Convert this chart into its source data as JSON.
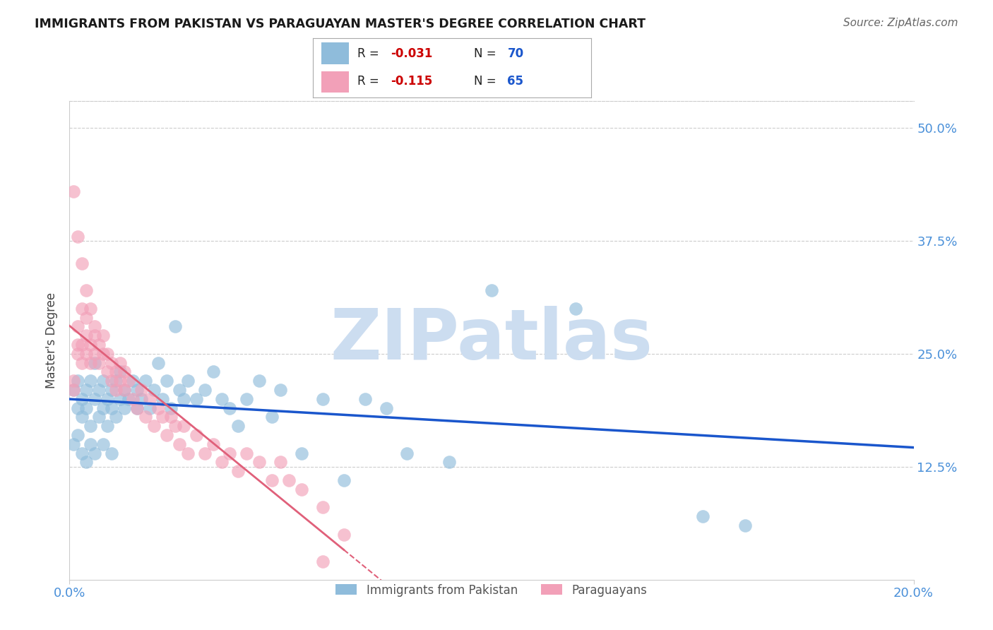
{
  "title": "IMMIGRANTS FROM PAKISTAN VS PARAGUAYAN MASTER'S DEGREE CORRELATION CHART",
  "source": "Source: ZipAtlas.com",
  "ylabel": "Master's Degree",
  "right_ytick_vals": [
    0.5,
    0.375,
    0.25,
    0.125
  ],
  "right_ytick_labels": [
    "50.0%",
    "37.5%",
    "25.0%",
    "12.5%"
  ],
  "xmin": 0.0,
  "xmax": 0.2,
  "ymin": 0.0,
  "ymax": 0.53,
  "blue_R": "-0.031",
  "blue_N": "70",
  "pink_R": "-0.115",
  "pink_N": "65",
  "blue_color": "#8fbcdb",
  "pink_color": "#f2a0b8",
  "blue_line_color": "#1a56cc",
  "pink_line_color": "#e0607a",
  "label_blue": "Immigrants from Pakistan",
  "label_pink": "Paraguayans",
  "blue_scatter_x": [
    0.001,
    0.002,
    0.002,
    0.003,
    0.003,
    0.004,
    0.004,
    0.005,
    0.005,
    0.006,
    0.006,
    0.007,
    0.007,
    0.008,
    0.008,
    0.009,
    0.009,
    0.01,
    0.01,
    0.011,
    0.011,
    0.012,
    0.012,
    0.013,
    0.013,
    0.014,
    0.015,
    0.016,
    0.016,
    0.017,
    0.018,
    0.019,
    0.02,
    0.021,
    0.022,
    0.023,
    0.024,
    0.025,
    0.026,
    0.027,
    0.028,
    0.03,
    0.032,
    0.034,
    0.036,
    0.038,
    0.04,
    0.042,
    0.045,
    0.048,
    0.05,
    0.055,
    0.06,
    0.065,
    0.07,
    0.075,
    0.08,
    0.09,
    0.1,
    0.12,
    0.001,
    0.002,
    0.003,
    0.004,
    0.005,
    0.006,
    0.008,
    0.01,
    0.15,
    0.16
  ],
  "blue_scatter_y": [
    0.21,
    0.19,
    0.22,
    0.2,
    0.18,
    0.21,
    0.19,
    0.22,
    0.17,
    0.2,
    0.24,
    0.18,
    0.21,
    0.19,
    0.22,
    0.2,
    0.17,
    0.21,
    0.19,
    0.22,
    0.18,
    0.2,
    0.23,
    0.19,
    0.21,
    0.2,
    0.22,
    0.21,
    0.19,
    0.2,
    0.22,
    0.19,
    0.21,
    0.24,
    0.2,
    0.22,
    0.19,
    0.28,
    0.21,
    0.2,
    0.22,
    0.2,
    0.21,
    0.23,
    0.2,
    0.19,
    0.17,
    0.2,
    0.22,
    0.18,
    0.21,
    0.14,
    0.2,
    0.11,
    0.2,
    0.19,
    0.14,
    0.13,
    0.32,
    0.3,
    0.15,
    0.16,
    0.14,
    0.13,
    0.15,
    0.14,
    0.15,
    0.14,
    0.07,
    0.06
  ],
  "pink_scatter_x": [
    0.001,
    0.001,
    0.002,
    0.002,
    0.002,
    0.003,
    0.003,
    0.003,
    0.004,
    0.004,
    0.004,
    0.005,
    0.005,
    0.005,
    0.006,
    0.006,
    0.006,
    0.007,
    0.007,
    0.008,
    0.008,
    0.009,
    0.009,
    0.01,
    0.01,
    0.011,
    0.011,
    0.012,
    0.012,
    0.013,
    0.013,
    0.014,
    0.015,
    0.016,
    0.017,
    0.018,
    0.019,
    0.02,
    0.021,
    0.022,
    0.023,
    0.024,
    0.025,
    0.026,
    0.027,
    0.028,
    0.03,
    0.032,
    0.034,
    0.036,
    0.038,
    0.04,
    0.042,
    0.045,
    0.048,
    0.05,
    0.052,
    0.055,
    0.06,
    0.065,
    0.001,
    0.002,
    0.003,
    0.004,
    0.06
  ],
  "pink_scatter_y": [
    0.21,
    0.22,
    0.25,
    0.26,
    0.28,
    0.24,
    0.26,
    0.3,
    0.25,
    0.27,
    0.29,
    0.24,
    0.26,
    0.3,
    0.25,
    0.27,
    0.28,
    0.24,
    0.26,
    0.25,
    0.27,
    0.23,
    0.25,
    0.22,
    0.24,
    0.21,
    0.23,
    0.22,
    0.24,
    0.21,
    0.23,
    0.22,
    0.2,
    0.19,
    0.21,
    0.18,
    0.2,
    0.17,
    0.19,
    0.18,
    0.16,
    0.18,
    0.17,
    0.15,
    0.17,
    0.14,
    0.16,
    0.14,
    0.15,
    0.13,
    0.14,
    0.12,
    0.14,
    0.13,
    0.11,
    0.13,
    0.11,
    0.1,
    0.08,
    0.05,
    0.43,
    0.38,
    0.35,
    0.32,
    0.02
  ],
  "watermark": "ZIPatlas",
  "watermark_color": "#ccddf0",
  "grid_color": "#cccccc",
  "background_color": "#ffffff",
  "tick_color": "#4a90d9",
  "r_val_color": "#cc0000",
  "n_val_color": "#1a56cc"
}
